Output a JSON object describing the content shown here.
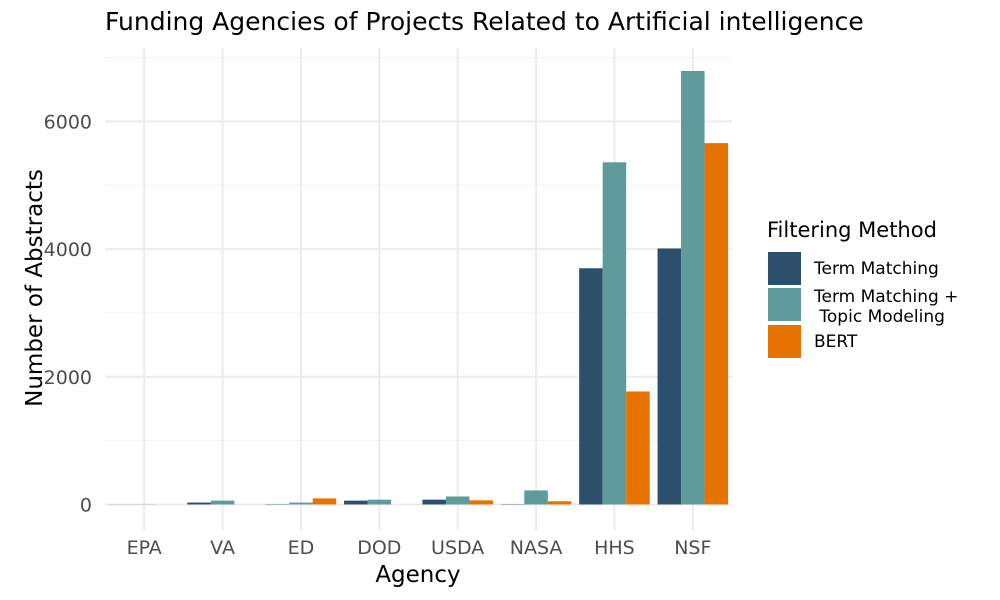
{
  "chart_data": {
    "type": "bar",
    "title": "Funding Agencies of Projects Related to Artificial intelligence",
    "xlabel": "Agency",
    "ylabel": "Number of Abstracts",
    "categories": [
      "EPA",
      "VA",
      "ED",
      "DOD",
      "USDA",
      "NASA",
      "HHS",
      "NSF"
    ],
    "series": [
      {
        "name": "Term Matching",
        "color": "#2c4f6b",
        "values": [
          2,
          30,
          5,
          60,
          75,
          5,
          3700,
          4010
        ]
      },
      {
        "name": "Term Matching +\n Topic Modeling",
        "color": "#5f9b9b",
        "values": [
          3,
          60,
          30,
          75,
          125,
          220,
          5360,
          6790
        ]
      },
      {
        "name": "BERT",
        "color": "#e67300",
        "values": [
          0,
          0,
          95,
          0,
          65,
          50,
          1770,
          5660
        ]
      }
    ],
    "yticks": [
      0,
      2000,
      4000,
      6000
    ],
    "ylim": [
      -400,
      7150
    ],
    "grid": true,
    "legend_title": "Filtering Method",
    "legend_position": "right"
  }
}
